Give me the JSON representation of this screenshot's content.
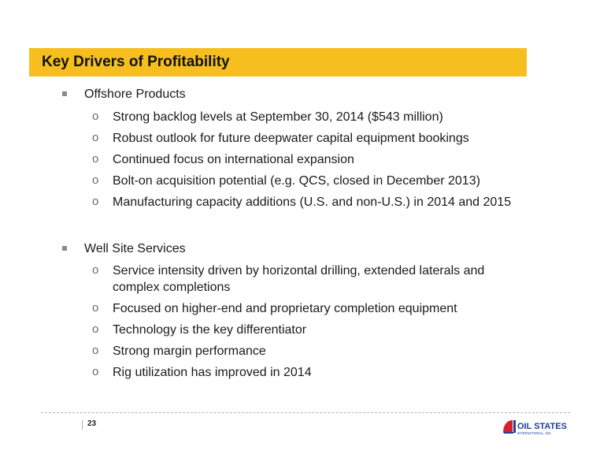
{
  "slide": {
    "title": "Key Drivers of Profitability",
    "sections": [
      {
        "heading": "Offshore Products",
        "items": [
          "Strong backlog levels at September 30, 2014 ($543 million)",
          "Robust outlook for future deepwater capital equipment bookings",
          "Continued focus on international expansion",
          "Bolt-on acquisition potential (e.g. QCS, closed in December 2013)",
          "Manufacturing capacity additions (U.S. and non-U.S.) in 2014 and 2015"
        ]
      },
      {
        "heading": "Well Site Services",
        "items": [
          "Service intensity driven by horizontal drilling, extended laterals and complex completions",
          "Focused on higher-end and proprietary completion equipment",
          "Technology is the key differentiator",
          "Strong margin performance",
          "Rig utilization has improved in 2014"
        ]
      }
    ],
    "bullet_sub_symbol": "o"
  },
  "footer": {
    "page_number": "23",
    "logo_text_main": "OIL STATES",
    "logo_text_sub": "INTERNATIONAL, INC."
  },
  "colors": {
    "title_bar": "#f6be1e",
    "logo_red": "#d2232a",
    "logo_blue": "#1f3f99"
  }
}
